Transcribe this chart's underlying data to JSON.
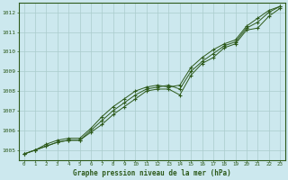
{
  "title": "Graphe pression niveau de la mer (hPa)",
  "x_labels": [
    0,
    1,
    2,
    3,
    4,
    5,
    6,
    7,
    8,
    9,
    10,
    11,
    12,
    13,
    14,
    15,
    16,
    17,
    18,
    19,
    20,
    21,
    22,
    23
  ],
  "ylim": [
    1004.5,
    1012.5
  ],
  "yticks": [
    1005,
    1006,
    1007,
    1008,
    1009,
    1010,
    1011,
    1012
  ],
  "background_color": "#cce8ee",
  "grid_color": "#aacccc",
  "line_color": "#2d5a1b",
  "marker_color": "#2d5a1b",
  "title_color": "#2d5a1b",
  "tick_color": "#2d5a1b",
  "series1": [
    1004.8,
    1005.0,
    1005.2,
    1005.4,
    1005.5,
    1005.5,
    1005.9,
    1006.3,
    1006.8,
    1007.2,
    1007.6,
    1008.0,
    1008.1,
    1008.1,
    1007.8,
    1008.8,
    1009.4,
    1009.7,
    1010.2,
    1010.4,
    1011.1,
    1011.2,
    1011.8,
    1012.2
  ],
  "series2": [
    1004.8,
    1005.0,
    1005.2,
    1005.4,
    1005.5,
    1005.5,
    1006.0,
    1006.5,
    1007.0,
    1007.4,
    1007.8,
    1008.1,
    1008.2,
    1008.3,
    1008.1,
    1009.0,
    1009.5,
    1009.9,
    1010.3,
    1010.5,
    1011.2,
    1011.5,
    1012.0,
    1012.3
  ],
  "series3": [
    1004.8,
    1005.0,
    1005.3,
    1005.5,
    1005.6,
    1005.6,
    1006.1,
    1006.7,
    1007.2,
    1007.6,
    1008.0,
    1008.2,
    1008.3,
    1008.2,
    1008.3,
    1009.2,
    1009.7,
    1010.1,
    1010.4,
    1010.6,
    1011.3,
    1011.7,
    1012.1,
    1012.3
  ]
}
